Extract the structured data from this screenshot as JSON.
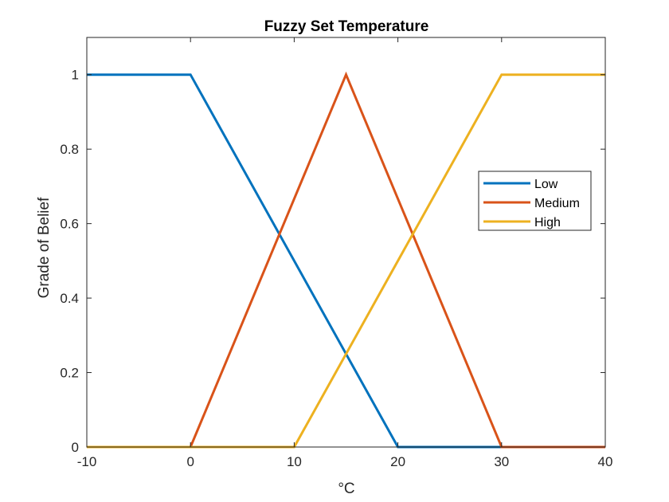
{
  "chart_data": {
    "type": "line",
    "title": "Fuzzy Set Temperature",
    "xlabel": "°C",
    "ylabel": "Grade of Belief",
    "xlim": [
      -10,
      40
    ],
    "ylim": [
      0,
      1.1
    ],
    "xticks": [
      -10,
      0,
      10,
      20,
      30,
      40
    ],
    "xtick_labels": [
      "-10",
      "0",
      "10",
      "20",
      "30",
      "40"
    ],
    "yticks": [
      0,
      0.2,
      0.4,
      0.6,
      0.8,
      1
    ],
    "ytick_labels": [
      "0",
      "0.2",
      "0.4",
      "0.6",
      "0.8",
      "1"
    ],
    "grid": false,
    "legend_position": "right",
    "series": [
      {
        "name": "Low",
        "color": "#0072BD",
        "x": [
          -10,
          0,
          20,
          30,
          40
        ],
        "y": [
          1,
          1,
          0,
          0,
          0
        ]
      },
      {
        "name": "Medium",
        "color": "#D95319",
        "x": [
          -10,
          0,
          15,
          30,
          40
        ],
        "y": [
          0,
          0,
          1,
          0,
          0
        ]
      },
      {
        "name": "High",
        "color": "#EDB120",
        "x": [
          -10,
          10,
          30,
          40
        ],
        "y": [
          0,
          0,
          1,
          1
        ]
      }
    ]
  }
}
